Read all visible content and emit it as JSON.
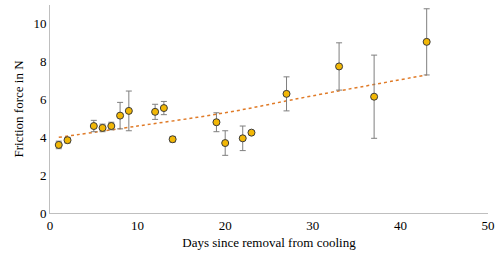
{
  "chart_data": {
    "type": "scatter",
    "x_label": "Days since removal from cooling",
    "y_label": "Friction force in N",
    "xlim": [
      0,
      50
    ],
    "xticks": [
      0,
      10,
      20,
      30,
      40,
      50
    ],
    "ylim": [
      0,
      11
    ],
    "yticks": [
      0,
      2,
      4,
      6,
      8,
      10
    ],
    "grid": false,
    "series": [
      {
        "type": "scatter",
        "marker": "circle",
        "color": "#f2b705",
        "x": [
          1,
          2,
          5,
          6,
          7,
          8,
          9,
          12,
          13,
          14,
          19,
          20,
          22,
          23,
          27,
          33,
          37,
          43
        ],
        "values": [
          3.6,
          3.85,
          4.6,
          4.5,
          4.6,
          5.15,
          5.4,
          5.35,
          5.55,
          3.9,
          4.8,
          3.7,
          3.95,
          4.25,
          6.3,
          7.75,
          6.15,
          9.05
        ],
        "error": [
          0.2,
          0.15,
          0.3,
          0.2,
          0.2,
          0.7,
          1.05,
          0.4,
          0.35,
          0.15,
          0.5,
          0.65,
          0.65,
          0,
          0.9,
          1.25,
          2.2,
          1.75
        ]
      },
      {
        "type": "line",
        "line_style": "dotted",
        "color": "#e07b28",
        "x": [
          1,
          10,
          20,
          30,
          43
        ],
        "values": [
          4.0,
          4.6,
          5.3,
          6.2,
          7.3
        ]
      }
    ]
  }
}
